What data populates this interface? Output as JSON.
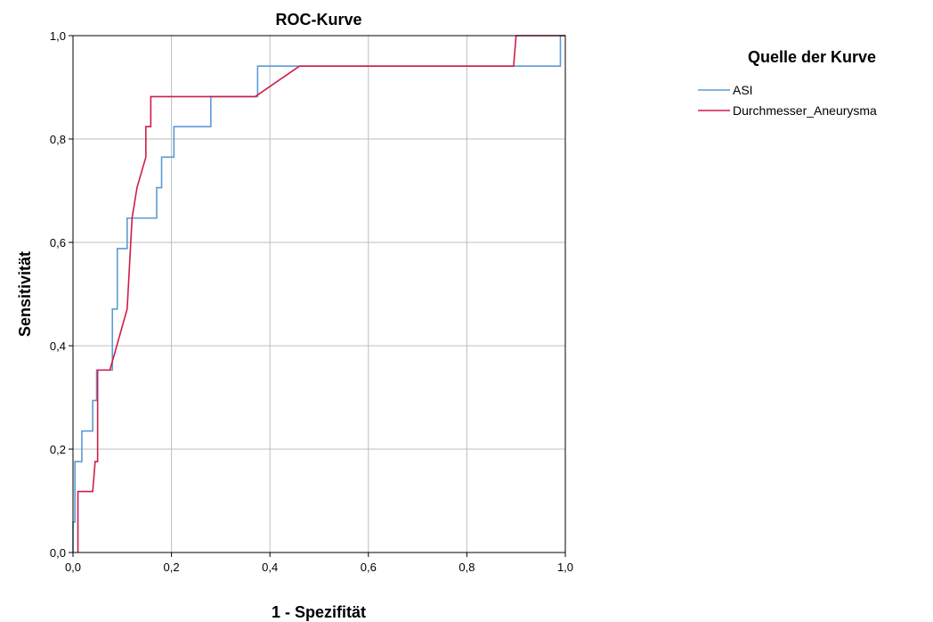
{
  "chart_data": {
    "type": "line",
    "title": "ROC-Kurve",
    "xlabel": "1 - Spezifität",
    "ylabel": "Sensitivität",
    "xlim": [
      0,
      1
    ],
    "ylim": [
      0,
      1
    ],
    "xticks": [
      "0,0",
      "0,2",
      "0,4",
      "0,6",
      "0,8",
      "1,0"
    ],
    "yticks": [
      "0,0",
      "0,2",
      "0,4",
      "0,6",
      "0,8",
      "1,0"
    ],
    "grid": true,
    "legend": {
      "title": "Quelle der Kurve",
      "placement": "right"
    },
    "series": [
      {
        "name": "ASI",
        "color": "#5b9bd5",
        "points": [
          [
            0,
            0
          ],
          [
            0,
            0.059
          ],
          [
            0.004,
            0.059
          ],
          [
            0.004,
            0.176
          ],
          [
            0.018,
            0.176
          ],
          [
            0.018,
            0.235
          ],
          [
            0.04,
            0.235
          ],
          [
            0.04,
            0.294
          ],
          [
            0.048,
            0.294
          ],
          [
            0.048,
            0.353
          ],
          [
            0.08,
            0.353
          ],
          [
            0.08,
            0.471
          ],
          [
            0.09,
            0.471
          ],
          [
            0.09,
            0.588
          ],
          [
            0.11,
            0.588
          ],
          [
            0.11,
            0.647
          ],
          [
            0.17,
            0.647
          ],
          [
            0.17,
            0.706
          ],
          [
            0.18,
            0.706
          ],
          [
            0.18,
            0.765
          ],
          [
            0.205,
            0.765
          ],
          [
            0.205,
            0.824
          ],
          [
            0.28,
            0.824
          ],
          [
            0.28,
            0.882
          ],
          [
            0.375,
            0.882
          ],
          [
            0.375,
            0.941
          ],
          [
            0.99,
            0.941
          ],
          [
            0.99,
            1.0
          ],
          [
            1.0,
            1.0
          ]
        ]
      },
      {
        "name": "Durchmesser_Aneurysma",
        "color": "#d01c48",
        "points": [
          [
            0.01,
            0
          ],
          [
            0.01,
            0.118
          ],
          [
            0.04,
            0.118
          ],
          [
            0.045,
            0.176
          ],
          [
            0.05,
            0.176
          ],
          [
            0.05,
            0.353
          ],
          [
            0.075,
            0.353
          ],
          [
            0.11,
            0.471
          ],
          [
            0.12,
            0.647
          ],
          [
            0.13,
            0.706
          ],
          [
            0.148,
            0.765
          ],
          [
            0.148,
            0.824
          ],
          [
            0.158,
            0.824
          ],
          [
            0.158,
            0.882
          ],
          [
            0.37,
            0.882
          ],
          [
            0.46,
            0.941
          ],
          [
            0.895,
            0.941
          ],
          [
            0.9,
            1.0
          ],
          [
            1.0,
            1.0
          ]
        ]
      }
    ]
  }
}
